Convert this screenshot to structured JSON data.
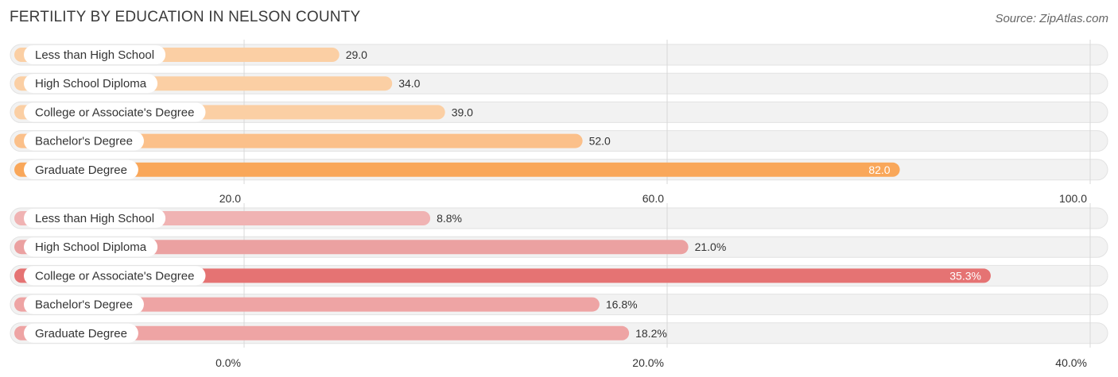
{
  "title": "FERTILITY BY EDUCATION IN NELSON COUNTY",
  "source": "Source: ZipAtlas.com",
  "chart_data": [
    {
      "type": "bar",
      "orientation": "horizontal",
      "categories": [
        "Less than High School",
        "High School Diploma",
        "College or Associate's Degree",
        "Bachelor's Degree",
        "Graduate Degree"
      ],
      "values": [
        29.0,
        34.0,
        39.0,
        52.0,
        82.0
      ],
      "value_labels": [
        "29.0",
        "34.0",
        "39.0",
        "52.0",
        "82.0"
      ],
      "xlim": [
        20,
        100
      ],
      "ticks": [
        20,
        60,
        100
      ],
      "tick_labels": [
        "20.0",
        "60.0",
        "100.0"
      ],
      "colors": [
        "#fbcfa4",
        "#fbcfa4",
        "#fbcfa4",
        "#fbc08a",
        "#f9a75a"
      ],
      "highlight_index": 4,
      "grid": true
    },
    {
      "type": "bar",
      "orientation": "horizontal",
      "categories": [
        "Less than High School",
        "High School Diploma",
        "College or Associate's Degree",
        "Bachelor's Degree",
        "Graduate Degree"
      ],
      "values": [
        8.8,
        21.0,
        35.3,
        16.8,
        18.2
      ],
      "value_labels": [
        "8.8%",
        "21.0%",
        "35.3%",
        "16.8%",
        "18.2%"
      ],
      "xlim": [
        0,
        40
      ],
      "ticks": [
        0,
        20,
        40
      ],
      "tick_labels": [
        "0.0%",
        "20.0%",
        "40.0%"
      ],
      "colors": [
        "#f0b3b3",
        "#eba1a1",
        "#e57373",
        "#eea4a4",
        "#eea4a4"
      ],
      "highlight_index": 2,
      "grid": true
    }
  ]
}
